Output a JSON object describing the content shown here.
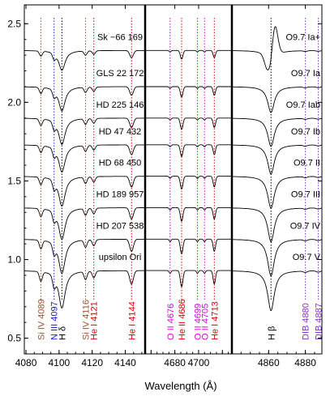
{
  "chart_data": {
    "type": "line",
    "xlabel": "Wavelength (Å)",
    "ylabel": "",
    "ylim": [
      0.4,
      2.62
    ],
    "yticks": [
      0.5,
      1.0,
      1.5,
      2.0,
      2.5
    ],
    "yticklabels": [
      "0.5",
      "1.0",
      "1.5",
      "2.0",
      "2.5"
    ],
    "grid": false,
    "panels": [
      {
        "name": "blue",
        "xlim": [
          4079,
          4152
        ],
        "xticks": [
          4080,
          4100,
          4120,
          4140
        ],
        "xticklabels": [
          "4080",
          "4100",
          "4120",
          "4140"
        ]
      },
      {
        "name": "mid",
        "xlim": [
          4655,
          4728
        ],
        "xticks": [
          4680,
          4700
        ],
        "xticklabels": [
          "4680",
          "4700"
        ],
        "xticks_unlabeled": [
          4660,
          4720
        ]
      },
      {
        "name": "red",
        "xlim": [
          4840,
          4889
        ],
        "xticks": [
          4860,
          4880
        ],
        "xticklabels": [
          "4860",
          "4880"
        ]
      }
    ],
    "series": [
      {
        "name": "Sk −66 169",
        "spectral_type": "O9.7 Ia+",
        "offset": 2.33,
        "strength": 0.45,
        "hbeta_emission": true
      },
      {
        "name": "GLS 22 172",
        "spectral_type": "O9.7 Ia",
        "offset": 2.1,
        "strength": 0.55,
        "hbeta_emission": false
      },
      {
        "name": "HD 225 146",
        "spectral_type": "O9.7 Iab",
        "offset": 1.9,
        "strength": 0.6,
        "hbeta_emission": false
      },
      {
        "name": "HD 47 432",
        "spectral_type": "O9.7 Ib",
        "offset": 1.73,
        "strength": 0.62,
        "hbeta_emission": false
      },
      {
        "name": "HD 68 450",
        "spectral_type": "O9.7 II",
        "offset": 1.53,
        "strength": 0.68,
        "hbeta_emission": false
      },
      {
        "name": "HD 189 957",
        "spectral_type": "O9.7 III",
        "offset": 1.33,
        "strength": 0.72,
        "hbeta_emission": false
      },
      {
        "name": "HD 207 538",
        "spectral_type": "O9.7 IV",
        "offset": 1.13,
        "strength": 0.78,
        "hbeta_emission": false
      },
      {
        "name": "upsilon Ori",
        "spectral_type": "O9.7 V",
        "offset": 0.93,
        "strength": 0.85,
        "hbeta_emission": false
      }
    ],
    "lines": [
      {
        "label": "Si IV 4089",
        "wavelength": 4089,
        "panel": 0,
        "color": "#a0522d",
        "depth": 0.07,
        "width": 0.9
      },
      {
        "label": "N III 4097",
        "wavelength": 4097,
        "panel": 0,
        "color": "#1515e0",
        "depth": 0.08,
        "width": 0.9
      },
      {
        "label": "H δ",
        "wavelength": 4101.7,
        "panel": 0,
        "color": "#000000",
        "depth": 0.28,
        "width": 2.4
      },
      {
        "label": "Si IV 4116",
        "wavelength": 4116,
        "panel": 0,
        "color": "#a0522d",
        "depth": 0.06,
        "width": 0.9
      },
      {
        "label": "He I 4121",
        "wavelength": 4121,
        "panel": 0,
        "color": "#e00000",
        "depth": 0.05,
        "width": 0.9
      },
      {
        "label": "He I 4144",
        "wavelength": 4143.8,
        "panel": 0,
        "color": "#e00000",
        "depth": 0.1,
        "width": 1.1
      },
      {
        "label": "O II 4676",
        "wavelength": 4676,
        "panel": 1,
        "color": "#e000e0",
        "depth": 0.02,
        "width": 0.8
      },
      {
        "label": "He II 4686",
        "wavelength": 4685.7,
        "panel": 1,
        "color": "#e00000",
        "depth": 0.12,
        "width": 1.1
      },
      {
        "label": "O II 4699",
        "wavelength": 4699,
        "panel": 1,
        "color": "#e000e0",
        "depth": 0.02,
        "width": 0.8
      },
      {
        "label": "O II 4705",
        "wavelength": 4705,
        "panel": 1,
        "color": "#e000e0",
        "depth": 0.02,
        "width": 0.8
      },
      {
        "label": "He I 4713",
        "wavelength": 4713.2,
        "panel": 1,
        "color": "#e00000",
        "depth": 0.1,
        "width": 1.0
      },
      {
        "label": "H β",
        "wavelength": 4861.3,
        "panel": 2,
        "color": "#000000",
        "depth": 0.3,
        "width": 2.2
      },
      {
        "label": "DIB 4880",
        "wavelength": 4880,
        "panel": 2,
        "color": "#8a2be2",
        "depth": 0.01,
        "width": 1.0
      },
      {
        "label": "DIB 4887",
        "wavelength": 4887,
        "panel": 2,
        "color": "#8a2be2",
        "depth": 0.01,
        "width": 1.0
      }
    ]
  }
}
